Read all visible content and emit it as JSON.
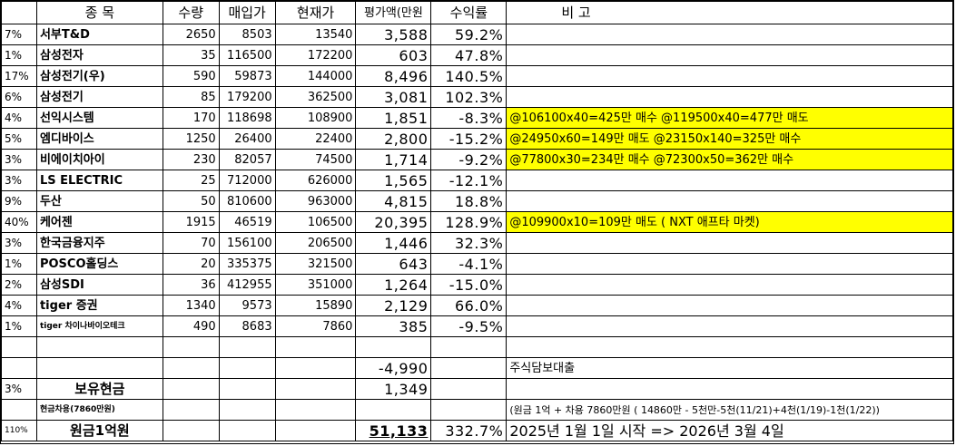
{
  "header": {
    "col_name": "종   목",
    "col_qty": "수량",
    "col_buy": "매입가",
    "col_cur": "현재가",
    "col_eval": "평가액(만원",
    "col_ret": "수익률",
    "col_note": "비        고"
  },
  "rows": [
    {
      "pct": "7%",
      "name": "서부T&D",
      "qty": "2650",
      "buy": "8503",
      "cur": "13540",
      "eval": "3,588",
      "ret": "59.2%",
      "note": "",
      "hl": false
    },
    {
      "pct": "1%",
      "name": "삼성전자",
      "qty": "35",
      "buy": "116500",
      "cur": "172200",
      "eval": "603",
      "ret": "47.8%",
      "note": "",
      "hl": false
    },
    {
      "pct": "17%",
      "name": "삼성전기(우)",
      "qty": "590",
      "buy": "59873",
      "cur": "144000",
      "eval": "8,496",
      "ret": "140.5%",
      "note": "",
      "hl": false
    },
    {
      "pct": "6%",
      "name": "삼성전기",
      "qty": "85",
      "buy": "179200",
      "cur": "362500",
      "eval": "3,081",
      "ret": "102.3%",
      "note": "",
      "hl": false
    },
    {
      "pct": "4%",
      "name": "선익시스템",
      "qty": "170",
      "buy": "118698",
      "cur": "108900",
      "eval": "1,851",
      "ret": "-8.3%",
      "note": "@106100x40=425만 매수 @119500x40=477만 매도",
      "hl": true
    },
    {
      "pct": "5%",
      "name": "엠디바이스",
      "qty": "1250",
      "buy": "26400",
      "cur": "22400",
      "eval": "2,800",
      "ret": "-15.2%",
      "note": "@24950x60=149만 매도 @23150x140=325만 매수",
      "hl": true
    },
    {
      "pct": "3%",
      "name": "비에이치아이",
      "qty": "230",
      "buy": "82057",
      "cur": "74500",
      "eval": "1,714",
      "ret": "-9.2%",
      "note": "@77800x30=234만 매수 @72300x50=362만 매수",
      "hl": true
    },
    {
      "pct": "3%",
      "name": "LS ELECTRIC",
      "qty": "25",
      "buy": "712000",
      "cur": "626000",
      "eval": "1,565",
      "ret": "-12.1%",
      "note": "",
      "hl": false
    },
    {
      "pct": "9%",
      "name": "두산",
      "qty": "50",
      "buy": "810600",
      "cur": "963000",
      "eval": "4,815",
      "ret": "18.8%",
      "note": "",
      "hl": false
    },
    {
      "pct": "40%",
      "name": "케어젠",
      "qty": "1915",
      "buy": "46519",
      "cur": "106500",
      "eval": "20,395",
      "ret": "128.9%",
      "note": "@109900x10=109만 매도 ( NXT 애프타 마켓)",
      "hl": true
    },
    {
      "pct": "3%",
      "name": "한국금융지주",
      "qty": "70",
      "buy": "156100",
      "cur": "206500",
      "eval": "1,446",
      "ret": "32.3%",
      "note": "",
      "hl": false
    },
    {
      "pct": "1%",
      "name": "POSCO홀딩스",
      "qty": "20",
      "buy": "335375",
      "cur": "321500",
      "eval": "643",
      "ret": "-4.1%",
      "note": "",
      "hl": false
    },
    {
      "pct": "2%",
      "name": "삼성SDI",
      "qty": "36",
      "buy": "412955",
      "cur": "351000",
      "eval": "1,264",
      "ret": "-15.0%",
      "note": "",
      "hl": false
    },
    {
      "pct": "4%",
      "name": "tiger 증권",
      "qty": "1340",
      "buy": "9573",
      "cur": "15890",
      "eval": "2,129",
      "ret": "66.0%",
      "note": "",
      "hl": false
    },
    {
      "pct": "1%",
      "name": "tiger 차이나바이오테크",
      "qty": "490",
      "buy": "8683",
      "cur": "7860",
      "eval": "385",
      "ret": "-9.5%",
      "note": "",
      "hl": false,
      "small": true
    }
  ],
  "loan": {
    "eval": "-4,990",
    "note": "주식담보대출"
  },
  "cash": {
    "pct": "3%",
    "name": "보유현금",
    "eval": "1,349"
  },
  "borrow": {
    "name": "현금차용(7860만원)",
    "note": "(원금 1억 + 차용 7860만원 ( 14860만 - 5천만-5천(11/21)+4천(1/19)-1천(1/22))"
  },
  "total": {
    "pct": "110%",
    "name": "원금1억원",
    "eval": "51,133",
    "ret": "332.7%",
    "note": "2025년 1월 1일 시작 => 2026년  3월 4일"
  }
}
